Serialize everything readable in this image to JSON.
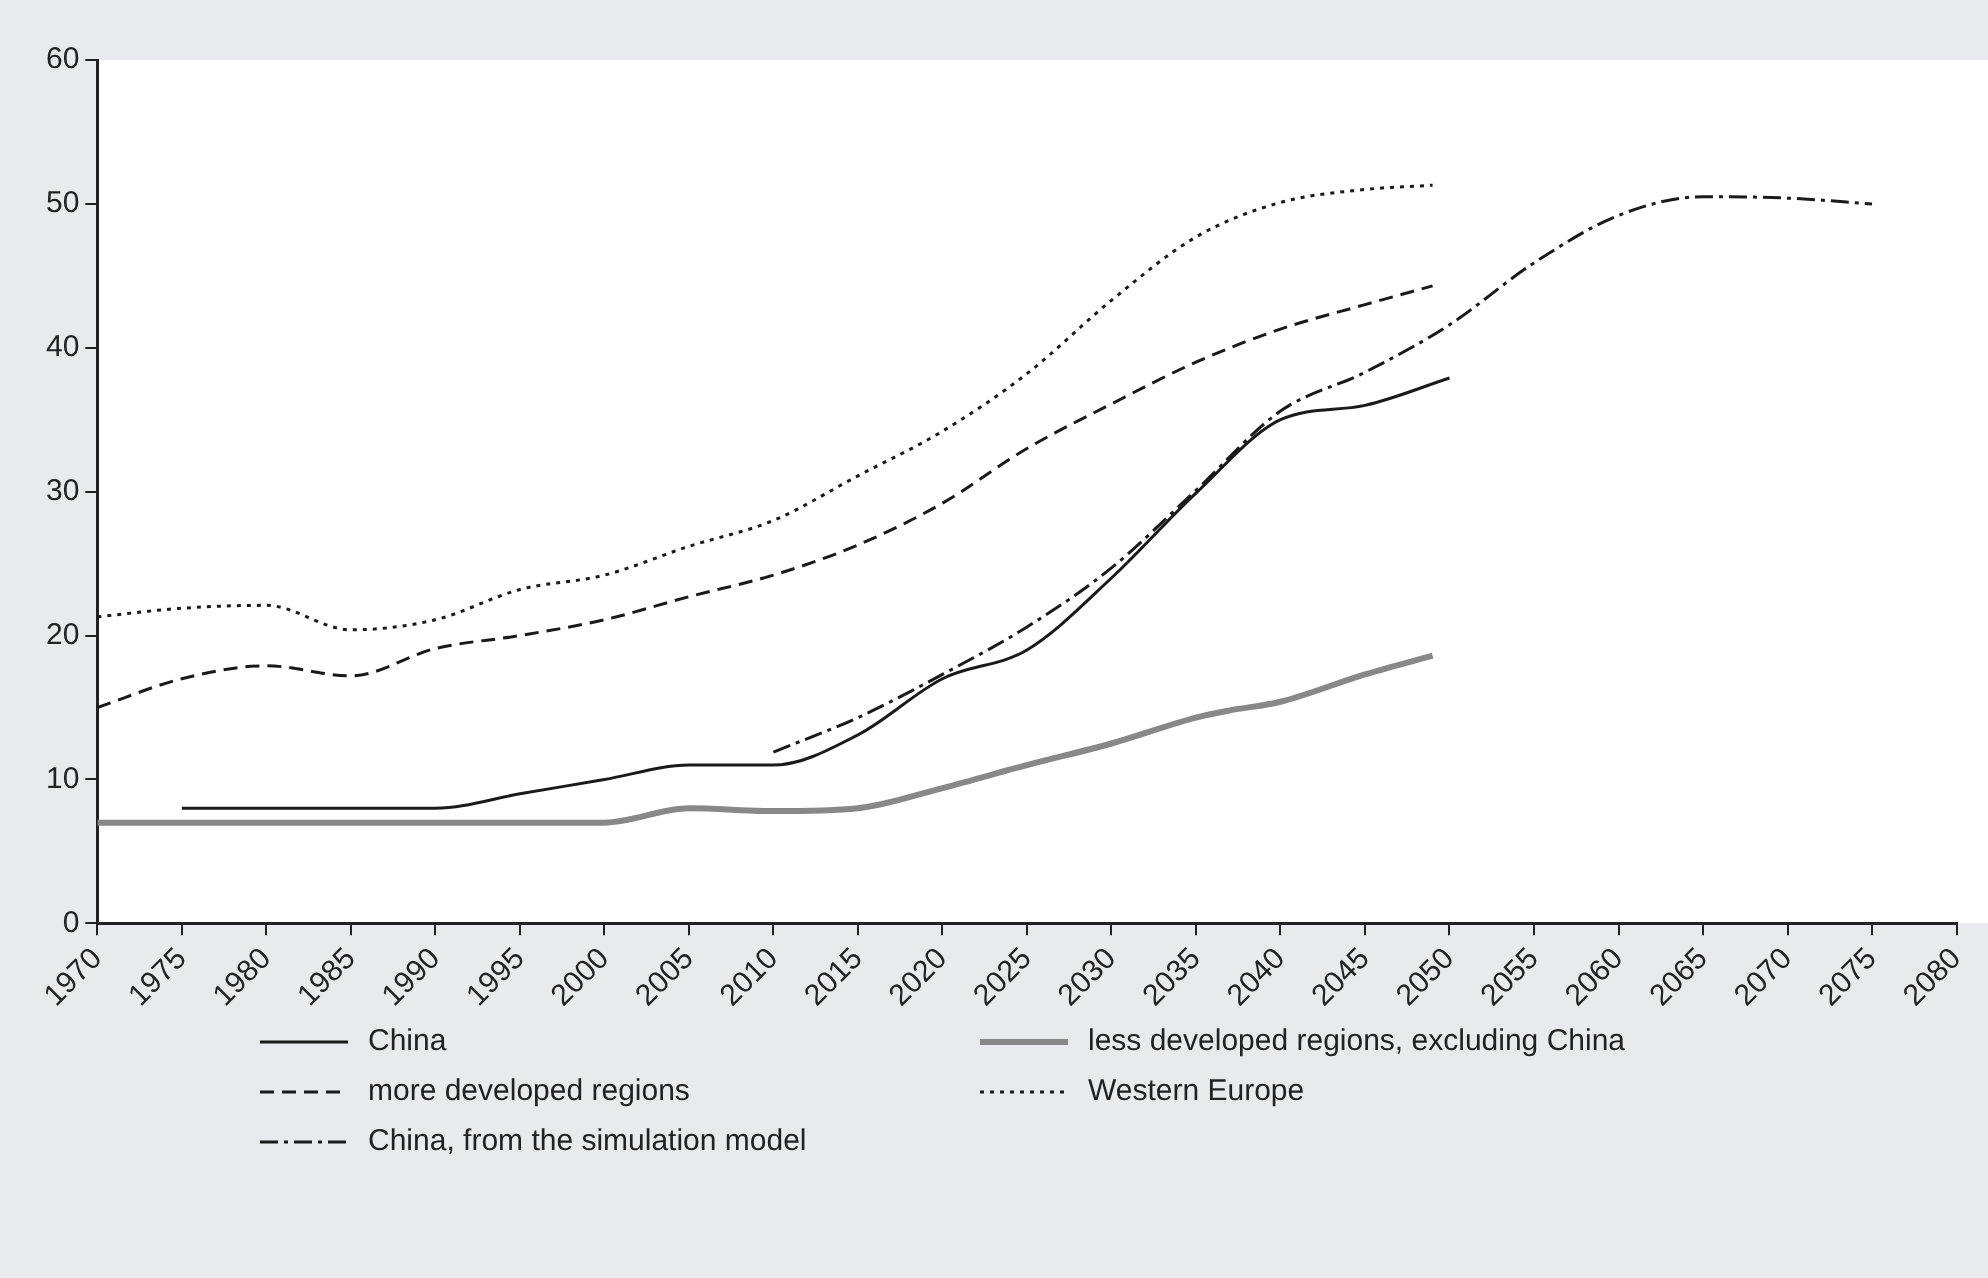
{
  "chart_data": {
    "type": "line",
    "xlim": [
      1970,
      2080
    ],
    "xticks": [
      1970,
      1975,
      1980,
      1985,
      1990,
      1995,
      2000,
      2005,
      2010,
      2015,
      2020,
      2025,
      2030,
      2035,
      2040,
      2045,
      2050,
      2055,
      2060,
      2065,
      2070,
      2075,
      2080
    ],
    "ylim": [
      0,
      60
    ],
    "yticks": [
      0,
      10,
      20,
      30,
      40,
      50,
      60
    ],
    "grid": false,
    "legend": "bottom",
    "marker": "none",
    "series": [
      {
        "name": "China",
        "color": "#1a1a1a",
        "line_style": "solid",
        "x": [
          1975,
          1980,
          1985,
          1990,
          1995,
          2000,
          2005,
          2010,
          2015,
          2020,
          2025,
          2030,
          2035,
          2040,
          2045,
          2050
        ],
        "values": [
          8,
          8,
          8,
          8,
          9,
          10,
          11,
          11,
          13.1,
          17,
          19,
          24,
          29.9,
          35,
          36,
          37.9
        ]
      },
      {
        "name": "less developed regions, excluding China",
        "color": "#888888",
        "line_style": "solid",
        "x": [
          1970,
          1975,
          1980,
          1985,
          1990,
          1995,
          2000,
          2005,
          2010,
          2015,
          2020,
          2025,
          2030,
          2035,
          2037,
          2040,
          2045,
          2049
        ],
        "values": [
          7,
          7,
          7,
          7,
          7,
          7,
          7,
          8,
          7.8,
          8,
          9.4,
          11,
          12.5,
          14.3,
          14.8,
          15.4,
          17.3,
          18.6
        ]
      },
      {
        "name": "more developed regions",
        "color": "#1a1a1a",
        "line_style": "dashed",
        "x": [
          1970,
          1975,
          1980,
          1985,
          1990,
          1995,
          2000,
          2005,
          2010,
          2015,
          2020,
          2025,
          2030,
          2035,
          2040,
          2045,
          2049
        ],
        "values": [
          15,
          17,
          17.9,
          17.2,
          19.1,
          20,
          21.1,
          22.7,
          24.2,
          26.3,
          29.2,
          33,
          36.1,
          39,
          41.3,
          43,
          44.3
        ]
      },
      {
        "name": "Western Europe",
        "color": "#1a1a1a",
        "line_style": "dotted",
        "x": [
          1970,
          1975,
          1980,
          1985,
          1990,
          1995,
          2000,
          2005,
          2010,
          2015,
          2020,
          2025,
          2030,
          2035,
          2040,
          2045,
          2049
        ],
        "values": [
          21.3,
          21.9,
          22.1,
          20.4,
          21.1,
          23.2,
          24.2,
          26.2,
          28,
          31.1,
          34.2,
          38.2,
          43.3,
          47.7,
          50.1,
          51,
          51.3
        ]
      },
      {
        "name": "China, from the simulation model",
        "color": "#1a1a1a",
        "line_style": "dashdot",
        "x": [
          2010,
          2015,
          2020,
          2025,
          2030,
          2035,
          2040,
          2045,
          2050,
          2055,
          2060,
          2065,
          2070,
          2075
        ],
        "values": [
          11.9,
          14.3,
          17.3,
          20.6,
          24.7,
          30.1,
          35.6,
          38.3,
          41.6,
          45.9,
          49.2,
          50.5,
          50.4,
          50
        ]
      }
    ]
  }
}
